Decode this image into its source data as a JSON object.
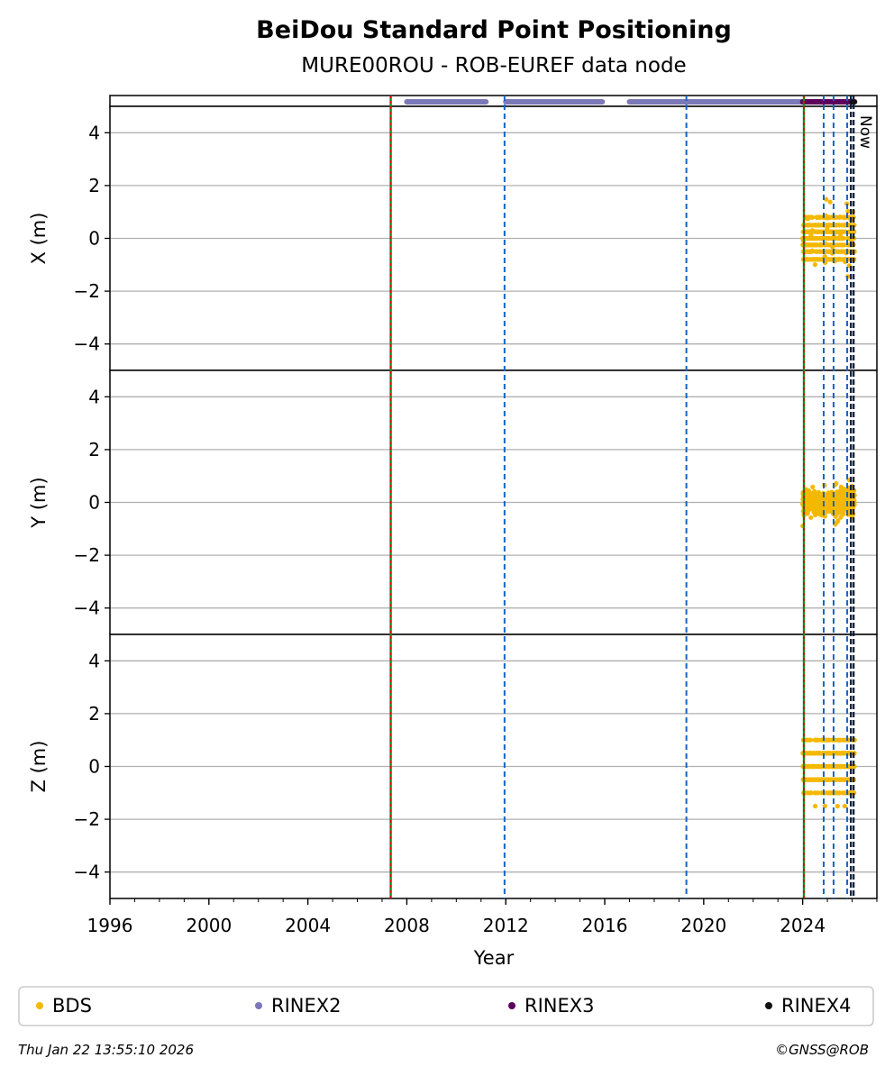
{
  "chart_data": {
    "type": "scatter",
    "title": "BeiDou Standard Point Positioning",
    "subtitle": "MURE00ROU - ROB-EUREF data node",
    "xlabel": "Year",
    "xlim": [
      1996,
      2027
    ],
    "x_ticks": [
      1996,
      2000,
      2004,
      2008,
      2012,
      2016,
      2020,
      2024
    ],
    "panels": [
      {
        "name": "X",
        "ylabel": "X (m)",
        "ylim": [
          -5,
          5
        ],
        "y_ticks": [
          4,
          2,
          0,
          -2,
          -4
        ],
        "bds_spread": [
          -1.5,
          1.5
        ]
      },
      {
        "name": "Y",
        "ylabel": "Y (m)",
        "ylim": [
          -5,
          5
        ],
        "y_ticks": [
          4,
          2,
          0,
          -2,
          -4
        ],
        "bds_spread": [
          -0.9,
          1.1
        ]
      },
      {
        "name": "Z",
        "ylabel": "Z (m)",
        "ylim": [
          -5,
          5
        ],
        "y_ticks": [
          4,
          2,
          0,
          -2,
          -4
        ],
        "bds_spread": [
          -1.5,
          1.0
        ]
      }
    ],
    "bds_period": [
      2024.0,
      2026.1
    ],
    "rinex_bars": [
      {
        "name": "RINEX2",
        "color": "#7b79b8",
        "segments": [
          [
            2008.0,
            2011.2
          ],
          [
            2012.0,
            2015.9
          ],
          [
            2017.0,
            2024.0
          ]
        ]
      },
      {
        "name": "RINEX3",
        "color": "#5c005c",
        "segments": [
          [
            2024.0,
            2026.0
          ]
        ]
      },
      {
        "name": "RINEX4",
        "color": "#111111",
        "segments": [
          [
            2026.0,
            2026.1
          ]
        ]
      }
    ],
    "vlines": [
      {
        "x": 2007.35,
        "style": "red-green"
      },
      {
        "x": 2024.05,
        "style": "red-green"
      },
      {
        "x": 2011.95,
        "style": "blue-dashed"
      },
      {
        "x": 2019.3,
        "style": "blue-dashed"
      },
      {
        "x": 2024.85,
        "style": "blue-dashed"
      },
      {
        "x": 2025.25,
        "style": "blue-dashed"
      },
      {
        "x": 2025.8,
        "style": "blue-dashed"
      },
      {
        "x": 2025.95,
        "style": "black-dashed"
      },
      {
        "x": 2026.06,
        "style": "black-dashed"
      }
    ],
    "now_label": "Now",
    "legend": [
      {
        "label": "BDS",
        "color": "#f5b800"
      },
      {
        "label": "RINEX2",
        "color": "#7b79b8"
      },
      {
        "label": "RINEX3",
        "color": "#5c005c"
      },
      {
        "label": "RINEX4",
        "color": "#111111"
      }
    ],
    "legend_position": "bottom",
    "grid": true
  },
  "footer": {
    "timestamp": "Thu Jan 22 13:55:10 2026",
    "credit": "©GNSS@ROB"
  }
}
